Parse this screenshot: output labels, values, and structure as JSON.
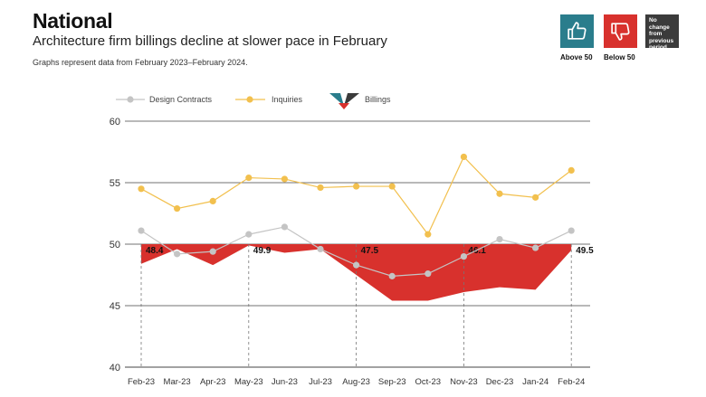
{
  "header": {
    "title": "National",
    "subtitle": "Architecture firm billings decline at slower pace in February",
    "note": "Graphs represent data from February 2023–February 2024."
  },
  "badges": {
    "above": {
      "label": "Above 50",
      "icon": "thumbs-up-icon",
      "color": "#2a7d8c"
    },
    "below": {
      "label": "Below 50",
      "icon": "thumbs-down-icon",
      "color": "#d8312d"
    },
    "nochange": {
      "text": "No change from previous period",
      "color": "#3b3b3b"
    }
  },
  "chart_data": {
    "type": "line",
    "categories": [
      "Feb-23",
      "Mar-23",
      "Apr-23",
      "May-23",
      "Jun-23",
      "Jul-23",
      "Aug-23",
      "Sep-23",
      "Oct-23",
      "Nov-23",
      "Dec-23",
      "Jan-24",
      "Feb-24"
    ],
    "ylim": [
      40,
      60
    ],
    "yticks": [
      40,
      45,
      50,
      55,
      60
    ],
    "baseline": 50,
    "grid": true,
    "legend": "top-left",
    "series": [
      {
        "name": "Design Contracts",
        "kind": "line",
        "color": "#c4c4c4",
        "values": [
          51.1,
          49.2,
          49.4,
          50.8,
          51.4,
          49.6,
          48.3,
          47.4,
          47.6,
          49.0,
          50.4,
          49.7,
          51.1
        ]
      },
      {
        "name": "Inquiries",
        "kind": "line",
        "color": "#f2c04e",
        "values": [
          54.5,
          52.9,
          53.5,
          55.4,
          55.3,
          54.6,
          54.7,
          54.7,
          50.8,
          57.1,
          54.1,
          53.8,
          56.0
        ]
      },
      {
        "name": "Billings",
        "kind": "area",
        "color": "#d8312d",
        "values": [
          48.4,
          49.6,
          48.3,
          49.9,
          49.3,
          49.6,
          47.5,
          45.4,
          45.4,
          46.1,
          46.5,
          46.3,
          49.5
        ]
      }
    ],
    "annotations": [
      {
        "category": "Feb-23",
        "label": "48.4"
      },
      {
        "category": "May-23",
        "label": "49.9"
      },
      {
        "category": "Aug-23",
        "label": "47.5"
      },
      {
        "category": "Nov-23",
        "label": "46.1"
      },
      {
        "category": "Feb-24",
        "label": "49.5"
      }
    ]
  }
}
